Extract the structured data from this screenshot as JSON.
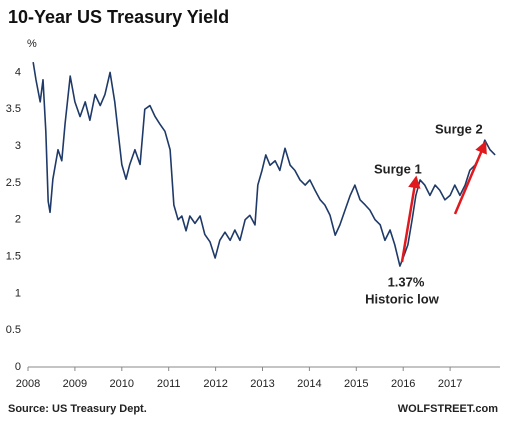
{
  "chart_data": {
    "type": "line",
    "title": "10-Year US Treasury Yield",
    "y_unit_label": "%",
    "source": "Source: US Treasury Dept.",
    "credit": "WOLFSTREET.com",
    "annotations": [
      "Surge 1",
      "Surge 2",
      "1.37%",
      "Historic low"
    ],
    "color": "#1f3a68",
    "annotation_color": "#e0191f",
    "xlim": [
      2008,
      2018
    ],
    "xticks": [
      2008,
      2009,
      2010,
      2011,
      2012,
      2013,
      2014,
      2015,
      2016,
      2017
    ],
    "ylim": [
      0,
      4.25
    ],
    "yticks": [
      0,
      0.5,
      1,
      1.5,
      2,
      2.5,
      3,
      3.5,
      4
    ],
    "grid": false,
    "x": [
      2008.11,
      2008.17,
      2008.26,
      2008.32,
      2008.38,
      2008.43,
      2008.47,
      2008.53,
      2008.64,
      2008.72,
      2008.79,
      2008.9,
      2009.0,
      2009.11,
      2009.22,
      2009.32,
      2009.43,
      2009.54,
      2009.64,
      2009.75,
      2009.85,
      2009.92,
      2010.0,
      2010.09,
      2010.17,
      2010.28,
      2010.39,
      2010.49,
      2010.6,
      2010.71,
      2010.81,
      2010.92,
      2011.03,
      2011.11,
      2011.2,
      2011.28,
      2011.37,
      2011.45,
      2011.56,
      2011.67,
      2011.77,
      2011.88,
      2011.99,
      2012.09,
      2012.2,
      2012.31,
      2012.41,
      2012.52,
      2012.63,
      2012.73,
      2012.84,
      2012.9,
      2012.99,
      2013.07,
      2013.16,
      2013.27,
      2013.37,
      2013.48,
      2013.59,
      2013.69,
      2013.8,
      2013.91,
      2014.01,
      2014.12,
      2014.23,
      2014.33,
      2014.44,
      2014.55,
      2014.65,
      2014.76,
      2014.87,
      2014.97,
      2015.08,
      2015.19,
      2015.29,
      2015.4,
      2015.51,
      2015.61,
      2015.72,
      2015.82,
      2015.93,
      2016.02,
      2016.1,
      2016.19,
      2016.27,
      2016.36,
      2016.46,
      2016.57,
      2016.68,
      2016.78,
      2016.89,
      2017.0,
      2017.1,
      2017.21,
      2017.32,
      2017.42,
      2017.53,
      2017.64,
      2017.74,
      2017.85,
      2017.96
    ],
    "values": [
      4.14,
      3.9,
      3.6,
      3.9,
      3.2,
      2.25,
      2.1,
      2.55,
      2.95,
      2.8,
      3.3,
      3.95,
      3.6,
      3.4,
      3.6,
      3.35,
      3.7,
      3.55,
      3.7,
      4.0,
      3.6,
      3.2,
      2.75,
      2.55,
      2.75,
      2.95,
      2.75,
      3.5,
      3.55,
      3.4,
      3.3,
      3.2,
      2.95,
      2.2,
      2.0,
      2.05,
      1.85,
      2.05,
      1.95,
      2.05,
      1.8,
      1.7,
      1.48,
      1.72,
      1.83,
      1.72,
      1.86,
      1.72,
      2.0,
      2.06,
      1.93,
      2.47,
      2.67,
      2.88,
      2.74,
      2.8,
      2.67,
      2.97,
      2.74,
      2.67,
      2.54,
      2.47,
      2.54,
      2.4,
      2.27,
      2.2,
      2.06,
      1.79,
      1.93,
      2.13,
      2.33,
      2.47,
      2.27,
      2.2,
      2.13,
      2.0,
      1.93,
      1.72,
      1.86,
      1.66,
      1.37,
      1.52,
      1.66,
      2.0,
      2.33,
      2.54,
      2.47,
      2.33,
      2.47,
      2.4,
      2.27,
      2.33,
      2.47,
      2.33,
      2.47,
      2.67,
      2.74,
      2.88,
      3.08,
      2.95,
      2.88
    ]
  }
}
